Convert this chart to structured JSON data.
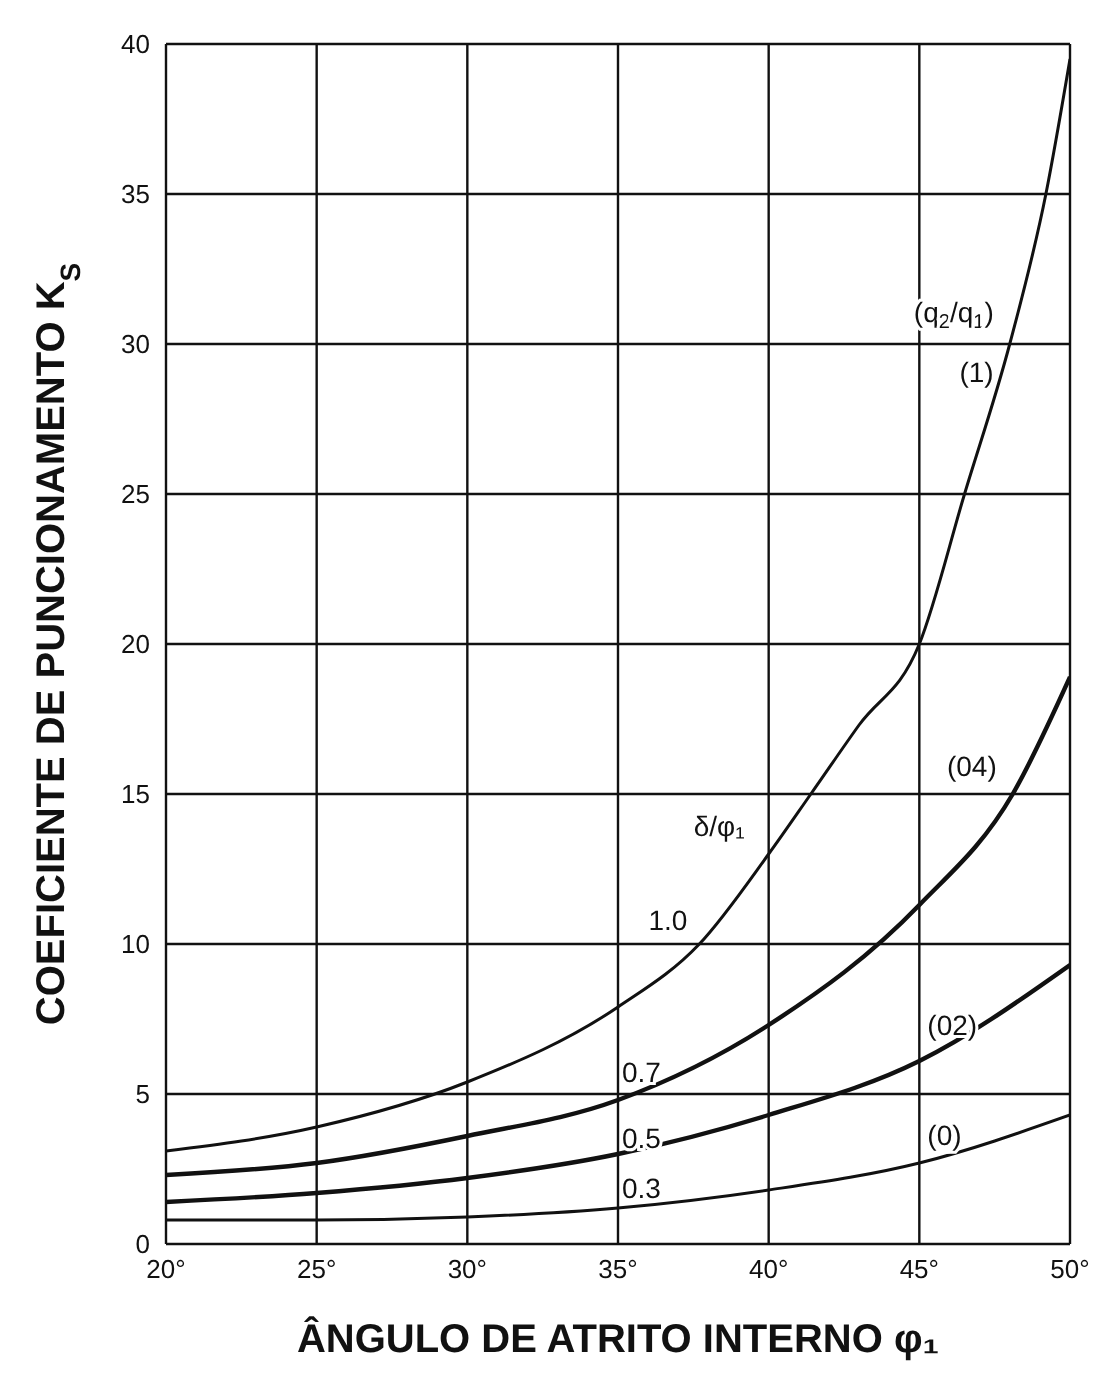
{
  "chart_data": {
    "type": "line",
    "xlabel": "ÂNGULO DE ATRITO INTERNO φ₁",
    "ylabel": "COEFICIENTE DE PUNCIONAMENTO K$_{S}$",
    "xlim": [
      20,
      50
    ],
    "xticks": [
      {
        "value": 20,
        "label": "20°"
      },
      {
        "value": 25,
        "label": "25°"
      },
      {
        "value": 30,
        "label": "30°"
      },
      {
        "value": 35,
        "label": "35°"
      },
      {
        "value": 40,
        "label": "40°"
      },
      {
        "value": 45,
        "label": "45°"
      },
      {
        "value": 50,
        "label": "50°"
      }
    ],
    "ylim": [
      0,
      40
    ],
    "yticks": [
      0,
      5,
      10,
      15,
      20,
      25,
      30,
      35,
      40
    ],
    "grid": true,
    "marker": "none",
    "line_style": "solid",
    "series": [
      {
        "color": "#111111",
        "x": [
          20,
          25,
          30,
          35,
          37.7,
          40,
          41.4,
          43,
          45,
          46.5,
          48,
          49.2,
          50
        ],
        "values": [
          3.1,
          3.9,
          5.4,
          7.9,
          10,
          13,
          15,
          17.3,
          20,
          25,
          30,
          35,
          39.5
        ]
      },
      {
        "color": "#111111",
        "x": [
          20,
          25,
          30,
          35,
          40,
          45,
          48.1,
          50
        ],
        "values": [
          2.3,
          2.7,
          3.6,
          4.8,
          7.3,
          11.3,
          15,
          18.9
        ]
      },
      {
        "color": "#111111",
        "x": [
          20,
          25,
          30,
          35,
          40,
          45,
          50
        ],
        "values": [
          1.4,
          1.7,
          2.2,
          3.0,
          4.3,
          6.1,
          9.3
        ]
      },
      {
        "color": "#111111",
        "x": [
          20,
          25,
          30,
          35,
          40,
          45,
          50
        ],
        "values": [
          0.8,
          0.8,
          0.9,
          1.2,
          1.8,
          2.7,
          4.3
        ]
      }
    ],
    "annotations": [
      {
        "text": "(q$_{2}$/q$_{1}$)",
        "x": 48,
        "y": 30
      },
      {
        "text": "(1)",
        "x": 48,
        "y": 30
      },
      {
        "text": "(04)",
        "x": 48.1,
        "y": 15
      },
      {
        "text": "(02)",
        "x": 45,
        "y": 6.1
      },
      {
        "text": "(0)",
        "x": 45,
        "y": 2.7
      },
      {
        "text": "δ/φ₁",
        "x": 40,
        "y": 13
      },
      {
        "text": "1.0",
        "x": 37.7,
        "y": 10
      },
      {
        "text": "0.7",
        "x": 35,
        "y": 4.8
      },
      {
        "text": "0.5",
        "x": 35,
        "y": 3.0
      },
      {
        "text": "0.3",
        "x": 35,
        "y": 1.2
      }
    ]
  }
}
